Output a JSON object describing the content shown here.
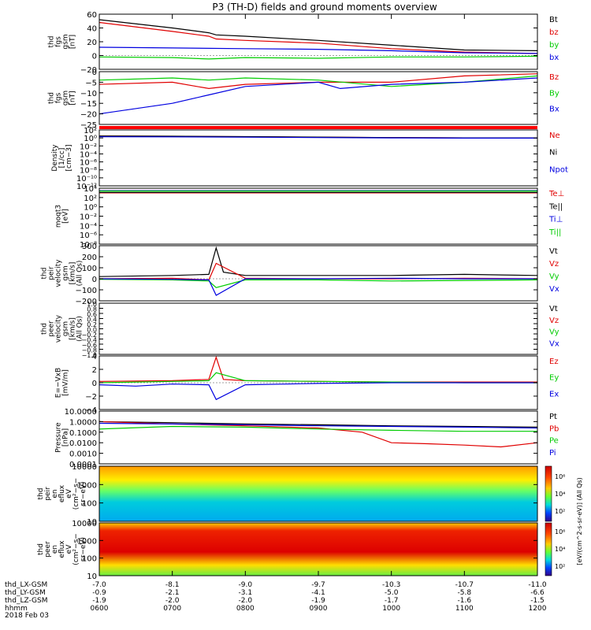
{
  "title": "P3 (TH-D) fields and ground moments overview",
  "chart_data": {
    "type": "line",
    "date_label": "2018 Feb 03",
    "x_rows": [
      {
        "name": "thd_LX-GSM",
        "values": [
          "-7.0",
          "-8.1",
          "-9.0",
          "-9.7",
          "-10.3",
          "-10.7",
          "-11.0"
        ]
      },
      {
        "name": "thd_LY-GSM",
        "values": [
          "-0.9",
          "-2.1",
          "-3.1",
          "-4.1",
          "-5.0",
          "-5.8",
          "-6.6"
        ]
      },
      {
        "name": "thd_LZ-GSM",
        "values": [
          "-1.9",
          "-2.0",
          "-2.0",
          "-1.9",
          "-1.7",
          "-1.6",
          "-1.5"
        ]
      },
      {
        "name": "hhmm",
        "values": [
          "0600",
          "0700",
          "0800",
          "0900",
          "1000",
          "1100",
          "1200"
        ]
      }
    ],
    "panels": [
      {
        "id": "fgs_mag",
        "ylabel": [
          "thd",
          "fgs",
          "gsm",
          "[nT]"
        ],
        "ylim": [
          -20,
          60
        ],
        "yticks": [
          "60",
          "40",
          "20",
          "0",
          "−20"
        ],
        "legend": [
          {
            "name": "Bt",
            "color": "#000000"
          },
          {
            "name": "bz",
            "color": "#e00000"
          },
          {
            "name": "by",
            "color": "#00cc00"
          },
          {
            "name": "bx",
            "color": "#0000e0"
          }
        ],
        "series": [
          {
            "name": "Bt",
            "color": "#000000",
            "x": [
              6.0,
              7.0,
              7.5,
              7.6,
              8.0,
              9.0,
              10.0,
              11.0,
              12.0
            ],
            "y": [
              52,
              40,
              33,
              30,
              28,
              22,
              15,
              8,
              7
            ]
          },
          {
            "name": "bz",
            "color": "#e00000",
            "x": [
              6.0,
              7.0,
              7.5,
              7.6,
              8.0,
              9.0,
              10.0,
              11.0,
              12.0
            ],
            "y": [
              48,
              35,
              28,
              24,
              22,
              18,
              10,
              5,
              3
            ]
          },
          {
            "name": "by",
            "color": "#00cc00",
            "x": [
              6.0,
              7.0,
              7.5,
              8.0,
              9.0,
              10.0,
              11.0,
              12.0
            ],
            "y": [
              -2,
              -3,
              -5,
              -3,
              -4,
              -2,
              -2,
              -1
            ]
          },
          {
            "name": "bx",
            "color": "#0000e0",
            "x": [
              6.0,
              7.0,
              8.0,
              9.0,
              10.0,
              11.0,
              12.0
            ],
            "y": [
              12,
              11,
              10,
              9,
              7,
              4,
              3
            ]
          }
        ]
      },
      {
        "id": "fgs_sm",
        "ylabel": [
          "thd",
          "fgs",
          "gsm",
          "[nT]"
        ],
        "ylim": [
          -25,
          0
        ],
        "yticks": [
          "0",
          "−5",
          "−10",
          "−15",
          "−20",
          "−25"
        ],
        "legend": [
          {
            "name": "Bz",
            "color": "#e00000"
          },
          {
            "name": "By",
            "color": "#00cc00"
          },
          {
            "name": "Bx",
            "color": "#0000e0"
          }
        ],
        "series": [
          {
            "name": "Bz",
            "color": "#e00000",
            "x": [
              6.0,
              7.0,
              7.5,
              8.0,
              9.0,
              10.0,
              11.0,
              12.0
            ],
            "y": [
              -6,
              -5,
              -8,
              -6,
              -5,
              -5,
              -2,
              -1
            ]
          },
          {
            "name": "By",
            "color": "#00cc00",
            "x": [
              6.0,
              7.0,
              7.5,
              8.0,
              9.0,
              10.0,
              11.0,
              12.0
            ],
            "y": [
              -4,
              -3,
              -4,
              -3,
              -4,
              -7,
              -5,
              -2
            ]
          },
          {
            "name": "Bx",
            "color": "#0000e0",
            "x": [
              6.0,
              7.0,
              7.5,
              8.0,
              9.0,
              9.3,
              10.0,
              11.0,
              12.0
            ],
            "y": [
              -20,
              -15,
              -11,
              -7,
              -5,
              -8,
              -6,
              -5,
              -3
            ]
          }
        ]
      },
      {
        "id": "density",
        "ylabel": [
          "Density",
          "[1/cc]",
          "[cm−3]"
        ],
        "yticks": [
          "10²",
          "10⁰",
          "10⁻²",
          "10⁻⁴",
          "10⁻⁶",
          "10⁻⁸",
          "10⁻¹⁰",
          "10⁻¹²"
        ],
        "legend": [
          {
            "name": "Ne",
            "color": "#e00000"
          },
          {
            "name": "Ni",
            "color": "#000000"
          },
          {
            "name": "Npot",
            "color": "#0000e0"
          }
        ],
        "series": [
          {
            "name": "Ne",
            "color": "#e00000",
            "x": [
              6,
              7,
              8,
              9,
              10,
              11,
              12
            ],
            "y": [
              3,
              2.5,
              2,
              1.5,
              1.2,
              1,
              1
            ]
          },
          {
            "name": "Ni",
            "color": "#000000",
            "x": [
              6,
              7,
              8,
              9,
              10,
              11,
              12
            ],
            "y": [
              3,
              2.6,
              2.1,
              1.6,
              1.2,
              1,
              1
            ]
          },
          {
            "name": "Npot",
            "color": "#0000e0",
            "x": [
              6,
              7,
              8,
              9,
              10,
              11,
              12
            ],
            "y": [
              2,
              1.8,
              1.5,
              1.2,
              1,
              0.9,
              0.9
            ]
          }
        ]
      },
      {
        "id": "temperature",
        "ylabel": [
          "moqt3",
          "[eV]"
        ],
        "yticks": [
          "10⁴",
          "10²",
          "10⁰",
          "10⁻²",
          "10⁻⁴",
          "10⁻⁶",
          "10⁻⁸"
        ],
        "legend": [
          {
            "name": "Te⊥",
            "color": "#e00000"
          },
          {
            "name": "Te||",
            "color": "#000000"
          },
          {
            "name": "Ti⊥",
            "color": "#0000e0"
          },
          {
            "name": "Ti||",
            "color": "#00cc00"
          }
        ],
        "series": [
          {
            "name": "Te⊥",
            "color": "#e00000",
            "x": [
              6,
              12
            ],
            "y": [
              1000,
              1000
            ]
          },
          {
            "name": "Te||",
            "color": "#000000",
            "x": [
              6,
              12
            ],
            "y": [
              1200,
              1200
            ]
          },
          {
            "name": "Ti⊥",
            "color": "#0000e0",
            "x": [
              6,
              12
            ],
            "y": [
              3000,
              3000
            ]
          },
          {
            "name": "Ti||",
            "color": "#00cc00",
            "x": [
              6,
              12
            ],
            "y": [
              2500,
              2500
            ]
          }
        ]
      },
      {
        "id": "peir_velocity",
        "ylabel": [
          "thd",
          "peir",
          "velocity",
          "gsm",
          "[km/s]",
          "(All Qs)"
        ],
        "ylim": [
          -200,
          300
        ],
        "yticks": [
          "300",
          "200",
          "100",
          "0",
          "−100",
          "−200"
        ],
        "legend": [
          {
            "name": "Vt",
            "color": "#000000"
          },
          {
            "name": "Vz",
            "color": "#e00000"
          },
          {
            "name": "Vy",
            "color": "#00cc00"
          },
          {
            "name": "Vx",
            "color": "#0000e0"
          }
        ],
        "series": [
          {
            "name": "Vt",
            "color": "#000000",
            "x": [
              6.0,
              7.0,
              7.5,
              7.6,
              7.7,
              8.0,
              9.0,
              10.0,
              11.0,
              12.0
            ],
            "y": [
              20,
              30,
              40,
              280,
              60,
              30,
              30,
              30,
              40,
              30
            ]
          },
          {
            "name": "Vz",
            "color": "#e00000",
            "x": [
              6.0,
              7.0,
              7.5,
              7.6,
              8.0,
              9.0,
              10.0,
              11.0,
              12.0
            ],
            "y": [
              0,
              5,
              -10,
              140,
              5,
              0,
              0,
              5,
              0
            ]
          },
          {
            "name": "Vy",
            "color": "#00cc00",
            "x": [
              6.0,
              7.0,
              7.5,
              7.6,
              8.0,
              9.0,
              10.0,
              11.0,
              12.0
            ],
            "y": [
              -5,
              -10,
              -20,
              -80,
              -10,
              -10,
              -20,
              -15,
              -10
            ]
          },
          {
            "name": "Vx",
            "color": "#0000e0",
            "x": [
              6.0,
              7.0,
              7.5,
              7.6,
              8.0,
              9.0,
              10.0,
              11.0,
              12.0
            ],
            "y": [
              0,
              -5,
              -10,
              -150,
              0,
              0,
              5,
              0,
              0
            ]
          }
        ]
      },
      {
        "id": "peer_velocity",
        "ylabel": [
          "thd",
          "peer",
          "velocity",
          "gsm",
          "[km/s]",
          "(All Qs)"
        ],
        "ylim": [
          -1,
          1
        ],
        "yticks": [
          "1.0",
          "0.8",
          "0.6",
          "0.4",
          "0.2",
          "0.0",
          "−0.2",
          "−0.4",
          "−0.6",
          "−0.8",
          "−1.0"
        ],
        "legend": [
          {
            "name": "Vt",
            "color": "#000000"
          },
          {
            "name": "Vz",
            "color": "#e00000"
          },
          {
            "name": "Vy",
            "color": "#00cc00"
          },
          {
            "name": "Vx",
            "color": "#0000e0"
          }
        ],
        "series": []
      },
      {
        "id": "e_field",
        "ylabel": [
          "E=−VxB",
          "[mV/m]"
        ],
        "ylim": [
          -4,
          4
        ],
        "yticks": [
          "4",
          "2",
          "0",
          "−2",
          "−4"
        ],
        "legend": [
          {
            "name": "Ez",
            "color": "#e00000"
          },
          {
            "name": "Ey",
            "color": "#00cc00"
          },
          {
            "name": "Ex",
            "color": "#0000e0"
          }
        ],
        "series": [
          {
            "name": "Ez",
            "color": "#e00000",
            "x": [
              6.0,
              7.0,
              7.5,
              7.6,
              7.7,
              8.0,
              9.0,
              10.0,
              11.0,
              12.0
            ],
            "y": [
              0.2,
              0.3,
              0.5,
              3.8,
              0.5,
              0.3,
              0.2,
              0.1,
              0.1,
              0.1
            ]
          },
          {
            "name": "Ey",
            "color": "#00cc00",
            "x": [
              6.0,
              7.0,
              7.5,
              7.6,
              8.0,
              9.0,
              10.0,
              11.0,
              12.0
            ],
            "y": [
              0,
              0.2,
              0.3,
              1.5,
              0.3,
              0.2,
              0.1,
              0,
              0
            ]
          },
          {
            "name": "Ex",
            "color": "#0000e0",
            "x": [
              6.0,
              6.5,
              7.0,
              7.5,
              7.6,
              8.0,
              9.0,
              10.0,
              11.0,
              12.0
            ],
            "y": [
              -0.3,
              -0.5,
              -0.2,
              -0.3,
              -2.5,
              -0.3,
              -0.1,
              0,
              0,
              0
            ]
          }
        ]
      },
      {
        "id": "pressure",
        "ylabel": [
          "Pressure",
          "[nPa]"
        ],
        "yticks": [
          "10.0000",
          "1.0000",
          "0.1000",
          "0.0100",
          "0.0010",
          "0.0001"
        ],
        "legend": [
          {
            "name": "Pt",
            "color": "#000000"
          },
          {
            "name": "Pb",
            "color": "#e00000"
          },
          {
            "name": "Pe",
            "color": "#00cc00"
          },
          {
            "name": "Pi",
            "color": "#0000e0"
          }
        ],
        "series": [
          {
            "name": "Pt",
            "color": "#000000",
            "x": [
              6,
              7,
              8,
              9,
              10,
              11,
              12
            ],
            "y": [
              1.0,
              0.8,
              0.6,
              0.5,
              0.4,
              0.35,
              0.3
            ]
          },
          {
            "name": "Pb",
            "color": "#e00000",
            "x": [
              6.0,
              7.0,
              8.0,
              9.0,
              9.6,
              10.0,
              10.5,
              11.0,
              11.5,
              12.0
            ],
            "y": [
              1.0,
              0.6,
              0.4,
              0.25,
              0.1,
              0.01,
              0.008,
              0.006,
              0.004,
              0.01
            ]
          },
          {
            "name": "Pe",
            "color": "#00cc00",
            "x": [
              6,
              7,
              8,
              9,
              10,
              11,
              12
            ],
            "y": [
              0.2,
              0.35,
              0.3,
              0.2,
              0.15,
              0.12,
              0.12
            ]
          },
          {
            "name": "Pi",
            "color": "#0000e0",
            "x": [
              6,
              7,
              8,
              9,
              10,
              11,
              12
            ],
            "y": [
              0.7,
              0.6,
              0.5,
              0.4,
              0.35,
              0.3,
              0.25
            ]
          }
        ]
      },
      {
        "id": "peir_spectrogram",
        "type": "heatmap",
        "ylabel": [
          "thd",
          "peir",
          "en",
          "eflux",
          "eV",
          "(cm²−s−",
          "sr−eV)"
        ],
        "yticks": [
          "10000",
          "1000",
          "100",
          "10"
        ]
      },
      {
        "id": "peer_spectrogram",
        "type": "heatmap",
        "ylabel": [
          "thd",
          "peer",
          "en",
          "eflux",
          "eV",
          "(cm²−s−",
          "sr−eV)"
        ],
        "yticks": [
          "10000",
          "1000",
          "100",
          "10"
        ]
      }
    ],
    "colorbar": {
      "label": "[eV/(cm^2-s-sr-eV)] (All Qs)",
      "ticks": [
        "10⁶",
        "10⁴",
        "10²",
        "10⁶",
        "10⁴",
        "10²"
      ]
    }
  }
}
